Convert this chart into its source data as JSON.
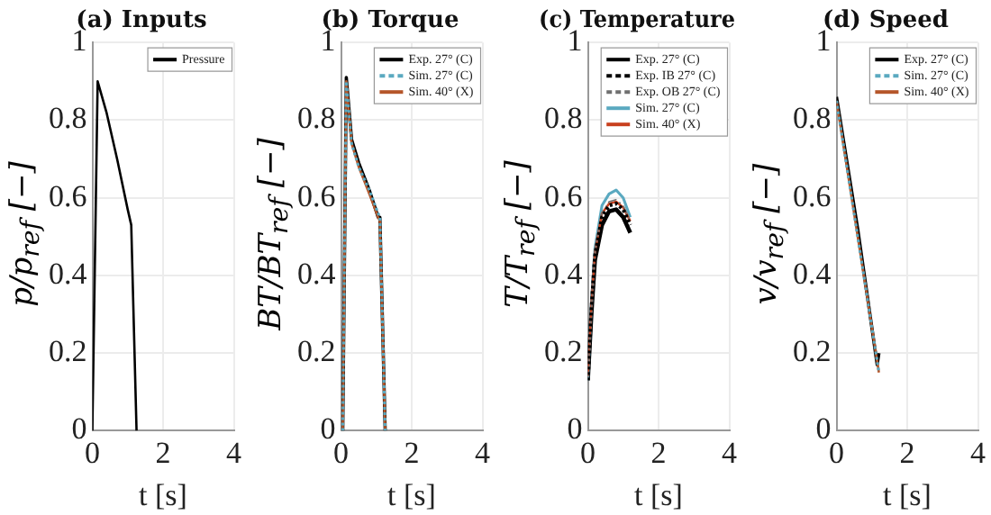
{
  "chart_data": [
    {
      "type": "line",
      "title": "(a) Inputs",
      "xlabel": "t [s]",
      "ylabel": "p/p$_{ref}$ [−]",
      "xlim": [
        0,
        4
      ],
      "xticks": [
        0,
        2,
        4
      ],
      "ylim": [
        0,
        1
      ],
      "yticks": [
        0,
        0.2,
        0.4,
        0.6,
        0.8,
        1
      ],
      "grid": true,
      "legend": "top right",
      "marker": "none",
      "series": [
        {
          "name": "Pressure",
          "color": "#000000",
          "line_style": "solid",
          "x": [
            0,
            0.15,
            0.4,
            0.7,
            1.0,
            1.1,
            1.25
          ],
          "values": [
            0,
            0.9,
            0.82,
            0.7,
            0.57,
            0.53,
            0
          ]
        }
      ]
    },
    {
      "type": "line",
      "title": "(b) Torque",
      "xlabel": "t [s]",
      "ylabel": "BT/BT$_{ref}$ [−]",
      "xlim": [
        0,
        4
      ],
      "xticks": [
        0,
        2,
        4
      ],
      "ylim": [
        0,
        1
      ],
      "yticks": [
        0,
        0.2,
        0.4,
        0.6,
        0.8,
        1
      ],
      "grid": true,
      "legend": "top right",
      "marker": "none",
      "series": [
        {
          "name": "Exp. 27° (C)",
          "color": "#000000",
          "line_style": "solid",
          "x": [
            0.05,
            0.15,
            0.3,
            0.5,
            0.8,
            1.05,
            1.1,
            1.25
          ],
          "values": [
            0,
            0.91,
            0.75,
            0.69,
            0.62,
            0.55,
            0.55,
            0
          ]
        },
        {
          "name": "Sim. 27° (C)",
          "color": "#5aa9c0",
          "line_style": "dotted",
          "x": [
            0.05,
            0.15,
            0.3,
            0.5,
            0.8,
            1.05,
            1.1,
            1.25
          ],
          "values": [
            0,
            0.9,
            0.74,
            0.68,
            0.62,
            0.56,
            0.55,
            0
          ]
        },
        {
          "name": "Sim. 40° (X)",
          "color": "#b5562a",
          "line_style": "solid",
          "x": [
            0.05,
            0.15,
            0.3,
            0.5,
            0.8,
            1.05,
            1.1,
            1.25
          ],
          "values": [
            0,
            0.9,
            0.74,
            0.68,
            0.61,
            0.55,
            0.54,
            0
          ]
        }
      ]
    },
    {
      "type": "line",
      "title": "(c) Temperature",
      "xlabel": "t [s]",
      "ylabel": "T/T$_{ref}$ [−]",
      "xlim": [
        0,
        4
      ],
      "xticks": [
        0,
        2,
        4
      ],
      "ylim": [
        0,
        1
      ],
      "yticks": [
        0,
        0.2,
        0.4,
        0.6,
        0.8,
        1
      ],
      "grid": true,
      "legend": "top right",
      "marker": "none",
      "series": [
        {
          "name": "Exp. 27° (C)",
          "color": "#000000",
          "line_style": "solid",
          "x": [
            0,
            0.1,
            0.2,
            0.4,
            0.6,
            0.8,
            1.0,
            1.2
          ],
          "values": [
            0.13,
            0.3,
            0.44,
            0.53,
            0.565,
            0.57,
            0.55,
            0.51
          ]
        },
        {
          "name": "Exp. IB 27° (C)",
          "color": "#000000",
          "line_style": "dotted",
          "x": [
            0,
            0.1,
            0.2,
            0.4,
            0.6,
            0.8,
            1.0,
            1.2
          ],
          "values": [
            0.13,
            0.31,
            0.45,
            0.55,
            0.58,
            0.585,
            0.57,
            0.53
          ]
        },
        {
          "name": "Exp. OB 27° (C)",
          "color": "#707070",
          "line_style": "dashed",
          "x": [
            0,
            0.1,
            0.2,
            0.4,
            0.6,
            0.8,
            1.0,
            1.2
          ],
          "values": [
            0.13,
            0.31,
            0.46,
            0.56,
            0.59,
            0.595,
            0.58,
            0.54
          ]
        },
        {
          "name": "Sim. 27° (C)",
          "color": "#5aa9c0",
          "line_style": "solid",
          "x": [
            0,
            0.1,
            0.2,
            0.4,
            0.6,
            0.8,
            1.0,
            1.2
          ],
          "values": [
            0.13,
            0.32,
            0.47,
            0.58,
            0.61,
            0.62,
            0.6,
            0.55
          ]
        },
        {
          "name": "Sim. 40° (X)",
          "color": "#c8401e",
          "line_style": "solid",
          "x": [
            0,
            0.1,
            0.2,
            0.4,
            0.6,
            0.8,
            1.0,
            1.2
          ],
          "values": [
            0.14,
            0.32,
            0.46,
            0.56,
            0.585,
            0.59,
            0.575,
            0.54
          ]
        }
      ]
    },
    {
      "type": "line",
      "title": "(d) Speed",
      "xlabel": "t [s]",
      "ylabel": "v/v$_{ref}$ [−]",
      "xlim": [
        0,
        4
      ],
      "xticks": [
        0,
        2,
        4
      ],
      "ylim": [
        0,
        1
      ],
      "yticks": [
        0,
        0.2,
        0.4,
        0.6,
        0.8,
        1
      ],
      "grid": true,
      "legend": "top right",
      "marker": "none",
      "series": [
        {
          "name": "Exp. 27° (C)",
          "color": "#000000",
          "line_style": "solid",
          "x": [
            0,
            0.6,
            1.15,
            1.2
          ],
          "values": [
            0.86,
            0.52,
            0.17,
            0.2
          ]
        },
        {
          "name": "Sim. 27° (C)",
          "color": "#5aa9c0",
          "line_style": "dotted",
          "x": [
            0,
            0.6,
            1.2
          ],
          "values": [
            0.85,
            0.5,
            0.15
          ]
        },
        {
          "name": "Sim. 40° (X)",
          "color": "#b5562a",
          "line_style": "solid",
          "x": [
            0,
            0.6,
            1.2
          ],
          "values": [
            0.85,
            0.5,
            0.15
          ]
        }
      ]
    }
  ]
}
